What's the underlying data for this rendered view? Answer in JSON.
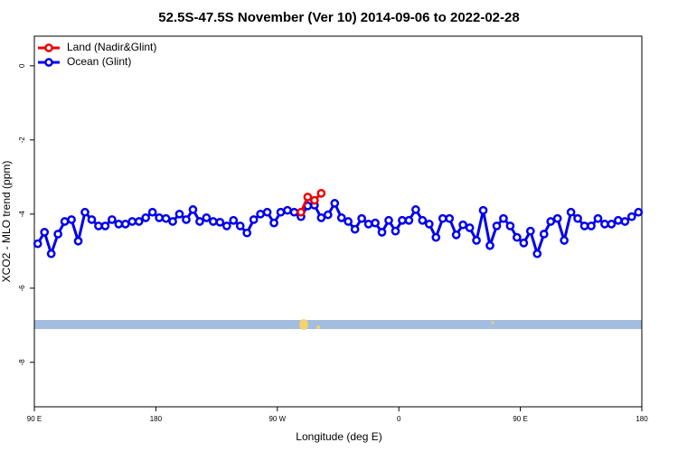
{
  "chart_data": {
    "type": "line",
    "title": "52.5S-47.5S November (Ver 10)   2014-09-06 to 2022-02-28",
    "x_label": "Longitude (deg E)",
    "y_label": "XCO2 - MLO trend (ppm)",
    "xlim": [
      90,
      540
    ],
    "xticks": [
      {
        "value": 90,
        "label": "90 E"
      },
      {
        "value": 180,
        "label": "180"
      },
      {
        "value": 270,
        "label": "90 W"
      },
      {
        "value": 360,
        "label": "0"
      },
      {
        "value": 450,
        "label": "90 E"
      },
      {
        "value": 540,
        "label": "180"
      }
    ],
    "ylim": [
      -9.2,
      0.8
    ],
    "yticks": [
      0,
      -2,
      -4,
      -6,
      -8
    ],
    "legend_position": "top-left",
    "series": [
      {
        "name": "Land (Nadir&Glint)",
        "color": "#ee0000",
        "x": [
          287.5,
          292.5,
          297.5,
          302.5
        ],
        "values": [
          -3.95,
          -3.54,
          -3.63,
          -3.44
        ]
      },
      {
        "name": "Ocean (Glint)",
        "color": "#0000ee",
        "x": [
          92.5,
          97.5,
          102.5,
          107.5,
          112.5,
          117.5,
          122.5,
          127.5,
          132.5,
          137.5,
          142.5,
          147.5,
          152.5,
          157.5,
          162.5,
          167.5,
          172.5,
          177.5,
          182.5,
          187.5,
          192.5,
          197.5,
          202.5,
          207.5,
          212.5,
          217.5,
          222.5,
          227.5,
          232.5,
          237.5,
          242.5,
          247.5,
          252.5,
          257.5,
          262.5,
          267.5,
          272.5,
          277.5,
          282.5,
          287.5,
          292.5,
          297.5,
          302.5,
          307.5,
          312.5,
          317.5,
          322.5,
          327.5,
          332.5,
          337.5,
          342.5,
          347.5,
          352.5,
          357.5,
          362.5,
          367.5,
          372.5,
          377.5,
          382.5,
          387.5,
          392.5,
          397.5,
          402.5,
          407.5,
          412.5,
          417.5,
          422.5,
          427.5,
          432.5,
          437.5,
          442.5,
          447.5,
          452.5,
          457.5,
          462.5,
          467.5,
          472.5,
          477.5,
          482.5,
          487.5,
          492.5,
          497.5,
          502.5,
          507.5,
          512.5,
          517.5,
          522.5,
          527.5,
          532.5,
          537.5
        ],
        "values": [
          -4.8,
          -4.49,
          -5.07,
          -4.54,
          -4.2,
          -4.15,
          -4.73,
          -3.95,
          -4.15,
          -4.32,
          -4.32,
          -4.15,
          -4.27,
          -4.27,
          -4.2,
          -4.2,
          -4.1,
          -3.95,
          -4.1,
          -4.12,
          -4.2,
          -4.0,
          -4.15,
          -3.88,
          -4.2,
          -4.1,
          -4.2,
          -4.22,
          -4.32,
          -4.17,
          -4.32,
          -4.51,
          -4.15,
          -4.0,
          -3.95,
          -4.24,
          -3.95,
          -3.9,
          -3.95,
          -4.07,
          -3.78,
          -3.76,
          -4.1,
          -4.02,
          -3.71,
          -4.1,
          -4.2,
          -4.41,
          -4.12,
          -4.27,
          -4.24,
          -4.49,
          -4.17,
          -4.46,
          -4.17,
          -4.17,
          -3.88,
          -4.17,
          -4.27,
          -4.63,
          -4.12,
          -4.12,
          -4.56,
          -4.29,
          -4.37,
          -4.71,
          -3.9,
          -4.85,
          -4.32,
          -4.12,
          -4.32,
          -4.63,
          -4.78,
          -4.46,
          -5.07,
          -4.54,
          -4.2,
          -4.12,
          -4.71,
          -3.95,
          -4.12,
          -4.32,
          -4.32,
          -4.12,
          -4.27,
          -4.27,
          -4.17,
          -4.2,
          -4.07,
          -3.95
        ]
      }
    ]
  }
}
